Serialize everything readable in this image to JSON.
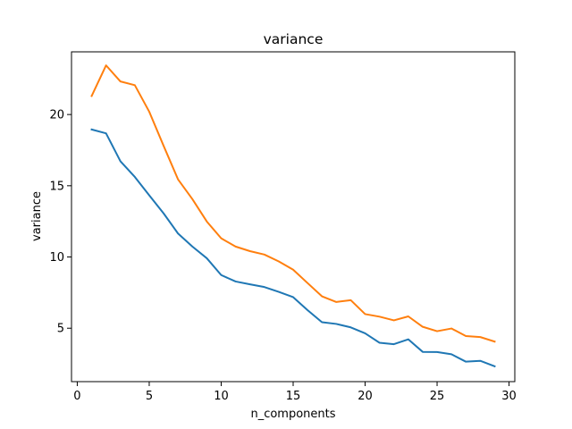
{
  "chart_data": {
    "type": "line",
    "title": "variance",
    "xlabel": "n_components",
    "ylabel": "variance",
    "xlim": [
      -0.4,
      30.4
    ],
    "ylim": [
      1.25,
      24.4
    ],
    "xticks": [
      0,
      5,
      10,
      15,
      20,
      25,
      30
    ],
    "yticks": [
      5,
      10,
      15,
      20
    ],
    "grid": false,
    "legend": "none",
    "x": [
      1,
      2,
      3,
      4,
      5,
      6,
      7,
      8,
      9,
      10,
      11,
      12,
      13,
      14,
      15,
      16,
      17,
      18,
      19,
      20,
      21,
      22,
      23,
      24,
      25,
      26,
      27,
      28,
      29
    ],
    "series": [
      {
        "color": "#1f77b4",
        "values": [
          18.95,
          18.68,
          16.72,
          15.62,
          14.33,
          13.06,
          11.65,
          10.73,
          9.91,
          8.73,
          8.28,
          8.08,
          7.89,
          7.55,
          7.18,
          6.27,
          5.42,
          5.3,
          5.06,
          4.64,
          3.98,
          3.88,
          4.22,
          3.34,
          3.33,
          3.17,
          2.65,
          2.71,
          2.33
        ]
      },
      {
        "color": "#ff7f0e",
        "values": [
          21.3,
          23.45,
          22.32,
          22.06,
          20.2,
          17.8,
          15.45,
          14.06,
          12.49,
          11.31,
          10.73,
          10.41,
          10.17,
          9.69,
          9.11,
          8.17,
          7.24,
          6.84,
          6.97,
          5.99,
          5.81,
          5.55,
          5.83,
          5.1,
          4.79,
          4.98,
          4.45,
          4.38,
          4.06
        ]
      }
    ]
  }
}
